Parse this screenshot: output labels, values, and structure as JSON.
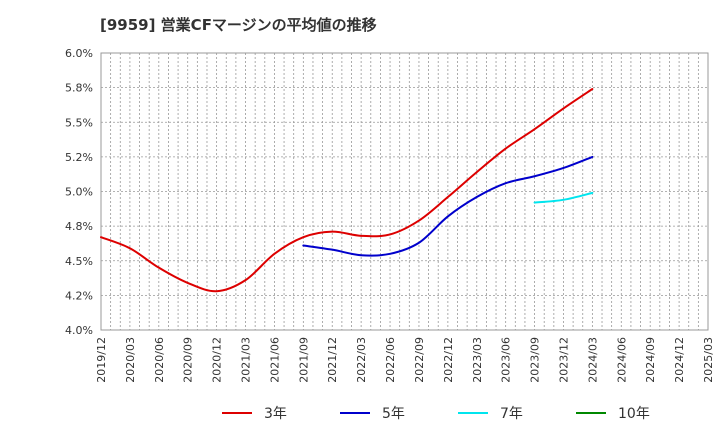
{
  "chart_data": {
    "type": "line",
    "title": "[9959]  営業CFマージンの平均値の推移",
    "xlabel": "",
    "ylabel": "",
    "x": [
      "2019/12",
      "2020/03",
      "2020/06",
      "2020/09",
      "2020/12",
      "2021/03",
      "2021/06",
      "2021/09",
      "2021/12",
      "2022/03",
      "2022/06",
      "2022/09",
      "2022/12",
      "2023/03",
      "2023/06",
      "2023/09",
      "2023/12",
      "2024/03",
      "2024/06",
      "2024/09",
      "2024/12",
      "2025/03"
    ],
    "ylim": [
      4.0,
      6.0
    ],
    "yticks": [
      4.0,
      4.25,
      4.5,
      4.75,
      5.0,
      5.25,
      5.5,
      5.75,
      6.0
    ],
    "ytick_labels": [
      "4.0%",
      "4.2%",
      "4.5%",
      "4.8%",
      "5.0%",
      "5.2%",
      "5.5%",
      "5.8%",
      "6.0%"
    ],
    "grid": true,
    "legend_position": "bottom",
    "series": [
      {
        "name": "3年",
        "color": "#dd0000",
        "points": [
          [
            "2019/12",
            4.67
          ],
          [
            "2020/03",
            4.59
          ],
          [
            "2020/06",
            4.45
          ],
          [
            "2020/09",
            4.34
          ],
          [
            "2020/12",
            4.28
          ],
          [
            "2021/03",
            4.36
          ],
          [
            "2021/06",
            4.55
          ],
          [
            "2021/09",
            4.67
          ],
          [
            "2021/12",
            4.71
          ],
          [
            "2022/03",
            4.68
          ],
          [
            "2022/06",
            4.69
          ],
          [
            "2022/09",
            4.79
          ],
          [
            "2022/12",
            4.96
          ],
          [
            "2023/03",
            5.14
          ],
          [
            "2023/06",
            5.31
          ],
          [
            "2023/09",
            5.45
          ],
          [
            "2023/12",
            5.6
          ],
          [
            "2024/03",
            5.74
          ]
        ]
      },
      {
        "name": "5年",
        "color": "#0000cc",
        "points": [
          [
            "2021/09",
            4.61
          ],
          [
            "2021/12",
            4.58
          ],
          [
            "2022/03",
            4.54
          ],
          [
            "2022/06",
            4.55
          ],
          [
            "2022/09",
            4.63
          ],
          [
            "2022/12",
            4.82
          ],
          [
            "2023/03",
            4.96
          ],
          [
            "2023/06",
            5.06
          ],
          [
            "2023/09",
            5.11
          ],
          [
            "2023/12",
            5.17
          ],
          [
            "2024/03",
            5.25
          ]
        ]
      },
      {
        "name": "7年",
        "color": "#00e5ee",
        "points": [
          [
            "2023/09",
            4.92
          ],
          [
            "2023/12",
            4.94
          ],
          [
            "2024/03",
            4.99
          ]
        ]
      },
      {
        "name": "10年",
        "color": "#008800",
        "points": []
      }
    ]
  }
}
